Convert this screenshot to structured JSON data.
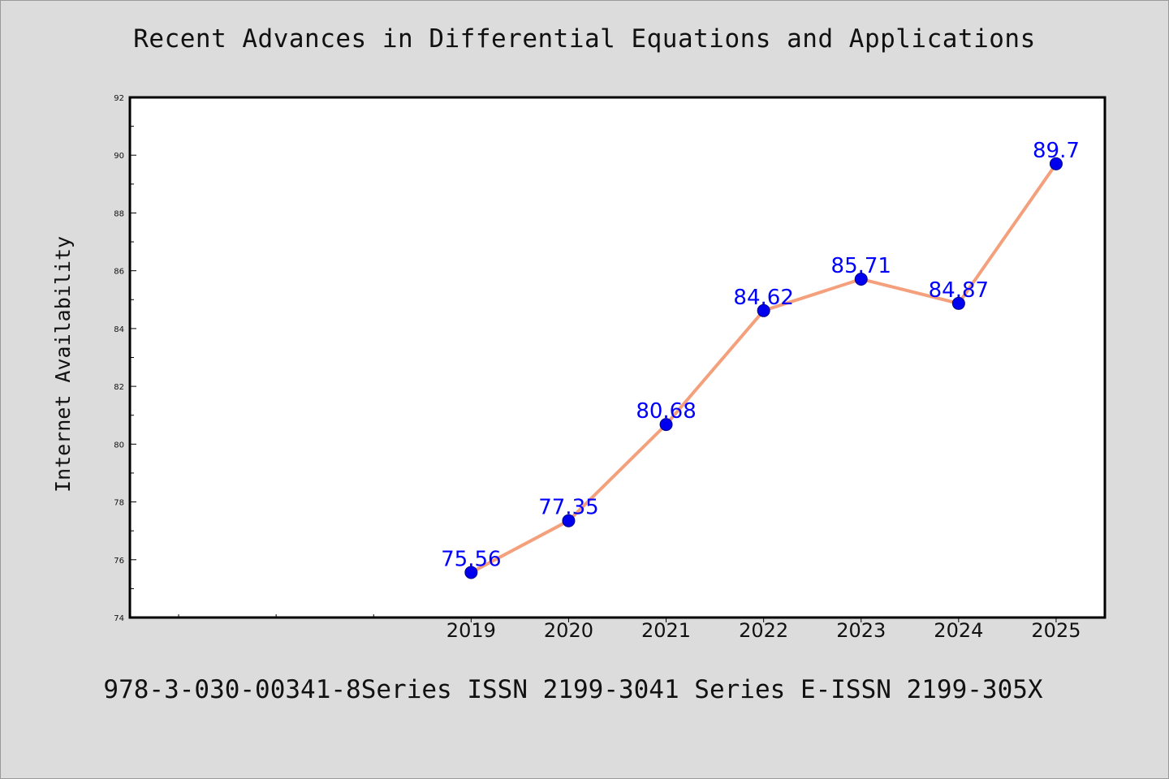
{
  "chart_data": {
    "type": "line",
    "title": "Recent Advances in Differential Equations and Applications",
    "ylabel": "Internet Availability",
    "xlabel": "",
    "footer": "978-3-030-00341-8Series ISSN 2199-3041 Series E-ISSN 2199-305X",
    "x": [
      "2019",
      "2020",
      "2021",
      "2022",
      "2023",
      "2024",
      "2025"
    ],
    "values": [
      75.56,
      77.35,
      80.68,
      84.62,
      85.71,
      84.87,
      89.7
    ],
    "data_labels": [
      "75.56",
      "77.35",
      "80.68",
      "84.62",
      "85.71",
      "84.87",
      "89.7"
    ],
    "ylim": [
      74,
      92
    ],
    "yticks": [
      74,
      76,
      78,
      80,
      82,
      84,
      86,
      88,
      90,
      92
    ],
    "x_slots": 10,
    "first_category_slot": 3,
    "grid": false,
    "legend": "none",
    "colors": {
      "line": "#f4a07c",
      "marker": "#0000ee",
      "data_label": "#0000ff",
      "background": "#dcdcdc",
      "plot_area": "#ffffff"
    }
  }
}
